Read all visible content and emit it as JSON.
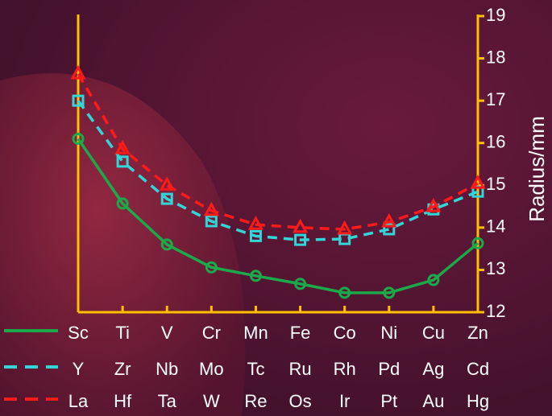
{
  "chart_data": {
    "type": "line",
    "y_label": "Radius/mm",
    "axis_color": "#ffc000",
    "ylim": [
      12,
      19
    ],
    "yticks": [
      12,
      13,
      14,
      15,
      16,
      17,
      18,
      19
    ],
    "series": [
      {
        "color": "#1aaa4a",
        "line_style": "solid",
        "marker": "circle",
        "labels": [
          "Sc",
          "Ti",
          "V",
          "Cr",
          "Mn",
          "Fe",
          "Co",
          "Ni",
          "Cu",
          "Zn"
        ],
        "values": [
          16.1,
          14.57,
          13.6,
          13.06,
          12.86,
          12.67,
          12.46,
          12.46,
          12.76,
          13.63
        ]
      },
      {
        "color": "#33d6d6",
        "line_style": "dashed",
        "marker": "square",
        "labels": [
          "Y",
          "Zr",
          "Nb",
          "Mo",
          "Tc",
          "Ru",
          "Rh",
          "Pd",
          "Ag",
          "Cd"
        ],
        "values": [
          17.0,
          15.56,
          14.68,
          14.15,
          13.8,
          13.71,
          13.73,
          13.96,
          14.43,
          14.85
        ]
      },
      {
        "color": "#ff1a1a",
        "line_style": "dashed",
        "marker": "triangle",
        "labels": [
          "La",
          "Hf",
          "Ta",
          "W",
          "Re",
          "Os",
          "Ir",
          "Pt",
          "Au",
          "Hg"
        ],
        "values": [
          17.63,
          15.86,
          15.0,
          14.4,
          14.07,
          14.0,
          13.96,
          14.13,
          14.49,
          15.04
        ]
      }
    ]
  }
}
